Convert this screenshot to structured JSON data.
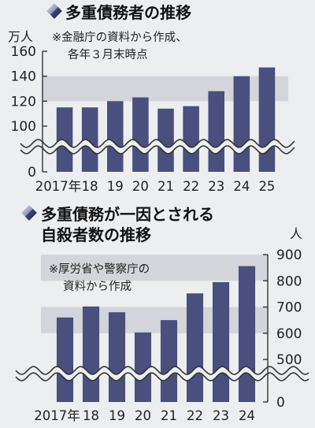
{
  "colors": {
    "background": "#edeef0",
    "band": "#d3d5da",
    "bar": "#4a4f7e",
    "axis": "#333333",
    "diamond_light": "#9aa0c8",
    "diamond_dark": "#3f4577"
  },
  "chart_data": [
    {
      "type": "bar",
      "title": "多重債務者の推移",
      "note_lines": [
        "※金融庁の資料から作成、",
        "各年３月末時点"
      ],
      "unit": "万人",
      "categories": [
        "2017年",
        "18",
        "19",
        "20",
        "21",
        "22",
        "23",
        "24",
        "25"
      ],
      "values": [
        115,
        115,
        120,
        123,
        114,
        116,
        128,
        140,
        147
      ],
      "ylim": [
        100,
        160
      ],
      "yticks": [
        0,
        100,
        120,
        140,
        160
      ],
      "axis_break": true,
      "axis_side": "left",
      "grid": "alternating horizontal bands"
    },
    {
      "type": "bar",
      "title_lines": [
        "多重債務が一因とされる",
        "自殺者数の推移"
      ],
      "note_lines": [
        "※厚労省や警察庁の",
        "資料から作成"
      ],
      "unit": "人",
      "categories": [
        "2017年",
        "18",
        "19",
        "20",
        "21",
        "22",
        "23",
        "24"
      ],
      "values": [
        660,
        702,
        680,
        603,
        650,
        752,
        795,
        856
      ],
      "ylim": [
        500,
        900
      ],
      "yticks": [
        0,
        500,
        600,
        700,
        800,
        900
      ],
      "axis_break": true,
      "axis_side": "right",
      "grid": "alternating horizontal bands"
    }
  ]
}
